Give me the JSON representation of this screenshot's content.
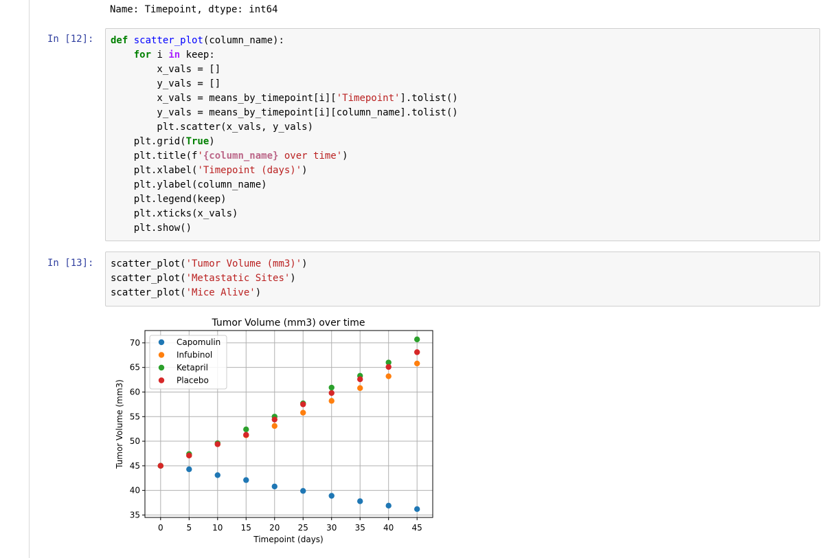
{
  "output_top": "Name: Timepoint, dtype: int64",
  "cell12": {
    "prompt": "In [12]:",
    "lines": [
      [
        [
          "kw",
          "def"
        ],
        [
          "t",
          " "
        ],
        [
          "fn",
          "scatter_plot"
        ],
        [
          "t",
          "(column_name):"
        ]
      ],
      [
        [
          "t",
          "    "
        ],
        [
          "kw",
          "for"
        ],
        [
          "t",
          " i "
        ],
        [
          "kw-in",
          "in"
        ],
        [
          "t",
          " keep:"
        ]
      ],
      [
        [
          "t",
          "        x_vals = []"
        ]
      ],
      [
        [
          "t",
          "        y_vals = []"
        ]
      ],
      [
        [
          "t",
          "        x_vals = means_by_timepoint[i]["
        ],
        [
          "str",
          "'Timepoint'"
        ],
        [
          "t",
          "].tolist()"
        ]
      ],
      [
        [
          "t",
          "        y_vals = means_by_timepoint[i][column_name].tolist()"
        ]
      ],
      [
        [
          "t",
          "        plt.scatter(x_vals, y_vals)"
        ]
      ],
      [
        [
          "t",
          "    plt.grid("
        ],
        [
          "kw",
          "True"
        ],
        [
          "t",
          ")"
        ]
      ],
      [
        [
          "t",
          "    plt.title(f"
        ],
        [
          "str",
          "'"
        ],
        [
          "interp",
          "{column_name}"
        ],
        [
          "str",
          " over time'"
        ],
        [
          "t",
          ")"
        ]
      ],
      [
        [
          "t",
          "    plt.xlabel("
        ],
        [
          "str",
          "'Timepoint (days)'"
        ],
        [
          "t",
          ")"
        ]
      ],
      [
        [
          "t",
          "    plt.ylabel(column_name)"
        ]
      ],
      [
        [
          "t",
          "    plt.legend(keep)"
        ]
      ],
      [
        [
          "t",
          "    plt.xticks(x_vals)"
        ]
      ],
      [
        [
          "t",
          "    plt.show()"
        ]
      ]
    ]
  },
  "cell13": {
    "prompt": "In [13]:",
    "lines": [
      [
        [
          "t",
          "scatter_plot("
        ],
        [
          "str",
          "'Tumor Volume (mm3)'"
        ],
        [
          "t",
          ")"
        ]
      ],
      [
        [
          "t",
          "scatter_plot("
        ],
        [
          "str",
          "'Metastatic Sites'"
        ],
        [
          "t",
          ")"
        ]
      ],
      [
        [
          "t",
          "scatter_plot("
        ],
        [
          "str",
          "'Mice Alive'"
        ],
        [
          "t",
          ")"
        ]
      ]
    ]
  },
  "chart_data": {
    "type": "scatter",
    "title": "Tumor Volume (mm3) over time",
    "xlabel": "Timepoint (days)",
    "ylabel": "Tumor Volume (mm3)",
    "x": [
      0,
      5,
      10,
      15,
      20,
      25,
      30,
      35,
      40,
      45
    ],
    "xticks": [
      0,
      5,
      10,
      15,
      20,
      25,
      30,
      35,
      40,
      45
    ],
    "yticks": [
      35,
      40,
      45,
      50,
      55,
      60,
      65,
      70
    ],
    "xlim": [
      -2.75,
      47.75
    ],
    "ylim": [
      34.5,
      72.5
    ],
    "grid": true,
    "legend_loc": "upper left",
    "series": [
      {
        "name": "Capomulin",
        "color": "#1f77b4",
        "values": [
          45.0,
          44.3,
          43.1,
          42.1,
          40.8,
          39.9,
          38.9,
          37.8,
          36.9,
          36.2
        ]
      },
      {
        "name": "Infubinol",
        "color": "#ff7f0e",
        "values": [
          45.0,
          47.1,
          49.4,
          51.2,
          53.1,
          55.8,
          58.2,
          60.8,
          63.2,
          65.8
        ]
      },
      {
        "name": "Ketapril",
        "color": "#2ca02c",
        "values": [
          45.0,
          47.4,
          49.6,
          52.4,
          55.0,
          57.7,
          60.9,
          63.3,
          66.0,
          70.7
        ]
      },
      {
        "name": "Placebo",
        "color": "#d62728",
        "values": [
          45.0,
          47.1,
          49.4,
          51.3,
          54.4,
          57.5,
          59.8,
          62.6,
          65.1,
          68.1
        ]
      }
    ]
  }
}
